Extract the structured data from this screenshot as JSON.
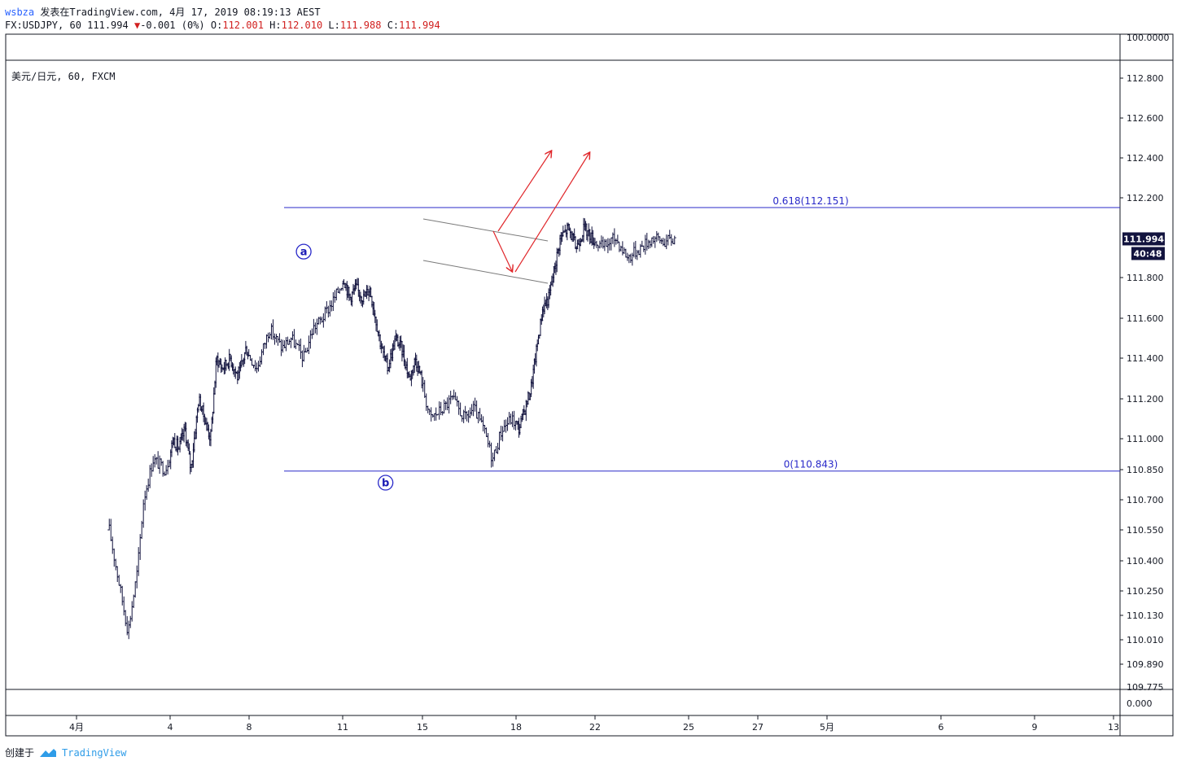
{
  "header": {
    "username": "wsbza",
    "published_text": " 发表在TradingView.com, 4月 17, 2019 08:19:13 AEST",
    "symbol_line": "FX:USDJPY, 60 111.994",
    "change_arrow": "▼",
    "change_text": "-0.001 (0%)",
    "o_label": " O:",
    "o_value": "112.001",
    "h_label": " H:",
    "h_value": "112.010",
    "l_label": " L:",
    "l_value": "111.988",
    "c_label": " C:",
    "c_value": "111.994"
  },
  "pane_title": "美元/日元, 60, FXCM",
  "footer": {
    "created_with": "创建于",
    "brand": "TradingView"
  },
  "colors": {
    "candle": "#13143f",
    "fib": "#2929c9",
    "arrow": "#e0262a",
    "channel": "#7a7a7a",
    "badge": "#13143f"
  },
  "chart_data": {
    "type": "candlestick",
    "symbol": "FX:USDJPY",
    "interval": "60",
    "last_price": "111.994",
    "countdown": "40:48",
    "y_ticks": [
      "112.800",
      "112.600",
      "112.400",
      "112.200",
      "111.800",
      "111.600",
      "111.400",
      "111.200",
      "111.000",
      "110.850",
      "110.700",
      "110.550",
      "110.400",
      "110.250",
      "110.130",
      "110.010",
      "109.890"
    ],
    "y_tick_values": [
      112.8,
      112.6,
      112.4,
      112.2,
      111.8,
      111.6,
      111.4,
      111.2,
      111.0,
      110.85,
      110.7,
      110.55,
      110.4,
      110.25,
      110.13,
      110.01,
      109.89
    ],
    "y_top_partial": "100.0000",
    "y_bottom_partial": "109.775",
    "indicator_tick": "0.000",
    "x_ticks": [
      "4月",
      "4",
      "8",
      "11",
      "15",
      "18",
      "22",
      "25",
      "27",
      "5月",
      "6",
      "9",
      "13"
    ],
    "x_tick_days": [
      1,
      4,
      8,
      11,
      15,
      18,
      22,
      25,
      27,
      31,
      36,
      39,
      43
    ],
    "x_day_start": 0,
    "x_day_end": 43.2,
    "price_path": [
      [
        0,
        110.55
      ],
      [
        0.3,
        110.3
      ],
      [
        0.6,
        110.05
      ],
      [
        0.9,
        110.35
      ],
      [
        1.1,
        110.7
      ],
      [
        1.4,
        110.9
      ],
      [
        1.8,
        110.85
      ],
      [
        2.1,
        111.0
      ],
      [
        2.4,
        110.95
      ],
      [
        2.7,
        111.05
      ],
      [
        3.0,
        110.85
      ],
      [
        3.4,
        111.2
      ],
      [
        3.7,
        111.1
      ],
      [
        4.0,
        111.0
      ],
      [
        4.3,
        111.4
      ],
      [
        4.6,
        111.35
      ],
      [
        5.0,
        111.4
      ],
      [
        5.4,
        111.3
      ],
      [
        5.8,
        111.45
      ],
      [
        6.2,
        111.35
      ],
      [
        6.6,
        111.55
      ],
      [
        7.0,
        111.45
      ],
      [
        7.3,
        111.5
      ],
      [
        7.7,
        111.4
      ],
      [
        8.0,
        111.55
      ],
      [
        8.3,
        111.6
      ],
      [
        8.7,
        111.7
      ],
      [
        9.0,
        111.8
      ],
      [
        9.3,
        111.7
      ],
      [
        9.6,
        111.75
      ],
      [
        10.0,
        111.7
      ],
      [
        10.3,
        111.75
      ],
      [
        10.6,
        111.6
      ],
      [
        10.9,
        111.45
      ],
      [
        11.2,
        111.35
      ],
      [
        11.6,
        111.5
      ],
      [
        11.9,
        111.45
      ],
      [
        12.3,
        111.3
      ],
      [
        12.6,
        111.4
      ],
      [
        12.9,
        111.3
      ],
      [
        13.2,
        111.1
      ],
      [
        13.6,
        111.15
      ],
      [
        13.9,
        111.2
      ],
      [
        14.3,
        111.1
      ],
      [
        14.6,
        111.15
      ],
      [
        14.9,
        111.05
      ],
      [
        15.2,
        110.9
      ],
      [
        15.5,
        111.05
      ],
      [
        15.8,
        111.1
      ],
      [
        16.1,
        111.05
      ],
      [
        16.4,
        111.15
      ],
      [
        16.7,
        111.25
      ],
      [
        17.0,
        111.45
      ],
      [
        17.3,
        111.65
      ],
      [
        17.6,
        111.7
      ],
      [
        17.9,
        111.85
      ],
      [
        18.2,
        112.0
      ],
      [
        18.6,
        112.05
      ],
      [
        19.0,
        111.95
      ],
      [
        19.4,
        112.05
      ],
      [
        19.8,
        112.0
      ],
      [
        20.2,
        111.95
      ],
      [
        20.6,
        112.0
      ],
      [
        21.0,
        111.9
      ],
      [
        21.4,
        111.95
      ],
      [
        21.8,
        112.0
      ],
      [
        22.2,
        111.98
      ],
      [
        22.5,
        111.994
      ]
    ],
    "annotations": {
      "fib_high": {
        "label": "0.618(112.151)",
        "price": 112.151
      },
      "fib_low": {
        "label": "0(110.843)",
        "price": 110.843
      },
      "wave_a": {
        "label": "a",
        "price": 111.93,
        "day": 7.7
      },
      "wave_b": {
        "label": "b",
        "price": 110.785,
        "day": 11.1
      }
    }
  }
}
